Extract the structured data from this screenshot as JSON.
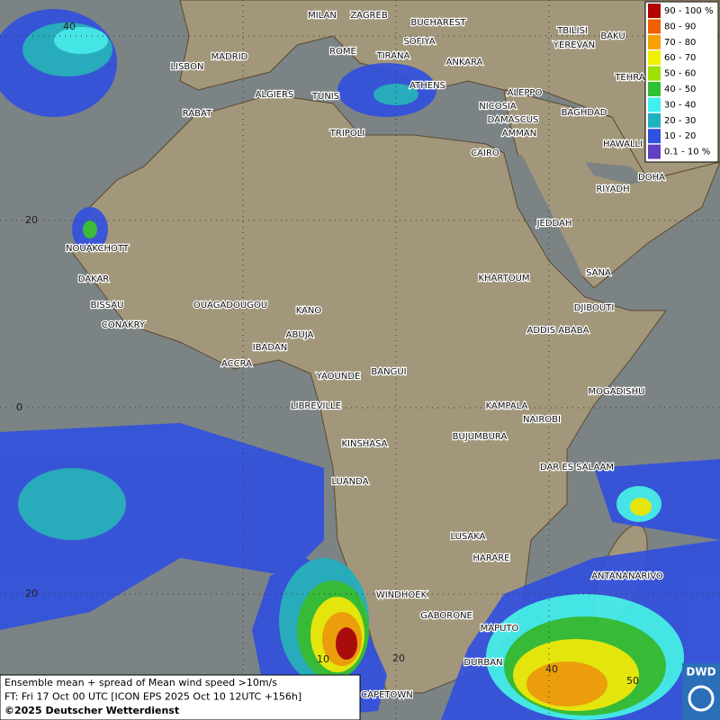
{
  "legend": [
    {
      "label": "90 - 100 %",
      "color": "#b00000"
    },
    {
      "label": "80 - 90",
      "color": "#f06000"
    },
    {
      "label": "70 - 80",
      "color": "#f8a000"
    },
    {
      "label": "60 - 70",
      "color": "#f0f000"
    },
    {
      "label": "50 - 60",
      "color": "#a0e000"
    },
    {
      "label": "40 - 50",
      "color": "#30c030"
    },
    {
      "label": "30 - 40",
      "color": "#40f0f0"
    },
    {
      "label": "20 - 30",
      "color": "#20b0c0"
    },
    {
      "label": "10 - 20",
      "color": "#3050e0"
    },
    {
      "label": "0.1 - 10 %",
      "color": "#6040c0"
    }
  ],
  "grid_labels": [
    "40",
    "20",
    "0",
    "20",
    "10",
    "20",
    "40",
    "50"
  ],
  "cities": [
    "MILAN",
    "ZAGREB",
    "BUCHAREST",
    "TBILISI",
    "SOFIYA",
    "YEREVAN",
    "BAKU",
    "ROME",
    "TIRANA",
    "ANKARA",
    "TEHRA",
    "LISBON",
    "MADRID",
    "ATHENS",
    "ALGIERS",
    "TUNIS",
    "ALEPPO",
    "RABAT",
    "NICOSIA",
    "BAGHDAD",
    "TRIPOLI",
    "DAMASCUS",
    "AMMAN",
    "HAWALLI",
    "CAIRO",
    "DOHA",
    "RIYADH",
    "JEDDAH",
    "NOUAKCHOTT",
    "SANA",
    "KHARTOUM",
    "DAKAR",
    "BISSAU",
    "DJIBOUTI",
    "OUAGADOUGOU",
    "KANO",
    "CONAKRY",
    "ADDIS ABABA",
    "ABUJA",
    "IBADAN",
    "ACCRA",
    "YAOUNDE",
    "BANGUI",
    "MOGADISHU",
    "LIBREVILLE",
    "KAMPALA",
    "NAIROBI",
    "KINSHASA",
    "BUJUMBURA",
    "DAR ES SALAAM",
    "LUANDA",
    "LUSAKA",
    "HARARE",
    "ANTANANARIVO",
    "WINDHOEK",
    "GABORONE",
    "MAPUTO",
    "DURBAN",
    "CAPETOWN"
  ],
  "footer": [
    "Ensemble mean + spread of Mean wind speed >10m/s",
    "FT: Fri 17 Oct 00 UTC [ICON EPS 2025 Oct 10 12UTC +156h]",
    "©2025 Deutscher Wetterdienst"
  ],
  "logo": "DWD"
}
